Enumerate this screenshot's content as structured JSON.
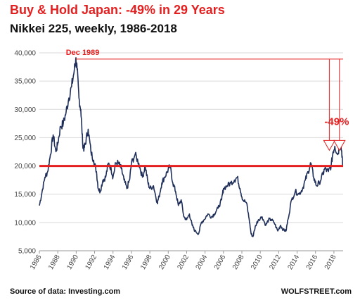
{
  "header": {
    "title": "Buy & Hold Japan: -49% in 29 Years",
    "subtitle": "Nikkei 225, weekly, 1986-2018"
  },
  "footer": {
    "source": "Source of data: Investing.com",
    "brand": "WOLFSTREET.com"
  },
  "colors": {
    "series": "#1f2f5a",
    "accent": "#e41f1f",
    "grid": "#d9d9d9"
  },
  "chart_data": {
    "type": "line",
    "xlim": [
      1986,
      2019
    ],
    "ylim": [
      5000,
      40000
    ],
    "yticks": [
      5000,
      10000,
      15000,
      20000,
      25000,
      30000,
      35000,
      40000
    ],
    "ytick_labels": [
      "5,000",
      "10,000",
      "15,000",
      "20,000",
      "25,000",
      "30,000",
      "35,000",
      "40,000"
    ],
    "xticks": [
      1986,
      1988,
      1990,
      1992,
      1994,
      1996,
      1998,
      2000,
      2002,
      2004,
      2006,
      2008,
      2010,
      2012,
      2014,
      2016,
      2018
    ],
    "xtick_labels": [
      "1986",
      "1988",
      "1990",
      "1992",
      "1994",
      "1996",
      "1998",
      "2000",
      "2002",
      "2004",
      "2006",
      "2008",
      "2010",
      "2012",
      "2014",
      "2016",
      "2018"
    ],
    "grid": "horizontal",
    "series": [
      {
        "x": [
          1986.0,
          1986.3,
          1986.6,
          1986.9,
          1987.2,
          1987.5,
          1987.8,
          1988.0,
          1988.3,
          1988.6,
          1988.9,
          1989.2,
          1989.5,
          1989.8,
          1989.95,
          1990.1,
          1990.3,
          1990.5,
          1990.7,
          1990.85,
          1991.0,
          1991.3,
          1991.6,
          1991.9,
          1992.2,
          1992.4,
          1992.6,
          1992.9,
          1993.2,
          1993.5,
          1993.8,
          1994.0,
          1994.3,
          1994.6,
          1994.9,
          1995.2,
          1995.5,
          1995.8,
          1996.0,
          1996.4,
          1996.8,
          1997.2,
          1997.5,
          1997.8,
          1998.0,
          1998.4,
          1998.8,
          1999.0,
          1999.3,
          1999.6,
          1999.9,
          2000.2,
          2000.5,
          2000.8,
          2001.1,
          2001.4,
          2001.7,
          2002.0,
          2002.3,
          2002.6,
          2002.9,
          2003.3,
          2003.6,
          2003.9,
          2004.3,
          2004.7,
          2005.0,
          2005.4,
          2005.8,
          2006.0,
          2006.4,
          2006.8,
          2007.2,
          2007.5,
          2007.8,
          2008.1,
          2008.5,
          2008.8,
          2009.0,
          2009.2,
          2009.5,
          2009.8,
          2010.2,
          2010.6,
          2010.9,
          2011.2,
          2011.5,
          2011.9,
          2012.2,
          2012.5,
          2012.8,
          2013.0,
          2013.4,
          2013.8,
          2014.2,
          2014.6,
          2014.9,
          2015.2,
          2015.5,
          2015.8,
          2016.1,
          2016.4,
          2016.8,
          2017.0,
          2017.4,
          2017.7,
          2017.9,
          2018.1,
          2018.4,
          2018.7,
          2018.85,
          2018.95
        ],
        "y": [
          13000,
          15500,
          18000,
          19000,
          22000,
          25500,
          22500,
          24000,
          27000,
          27500,
          29500,
          32000,
          34000,
          37000,
          38900,
          37000,
          32000,
          30000,
          24000,
          23000,
          24000,
          26500,
          22500,
          21000,
          19000,
          16000,
          15500,
          17500,
          18000,
          20500,
          19500,
          18000,
          20500,
          20500,
          19500,
          17500,
          16000,
          17500,
          20500,
          22000,
          20500,
          18000,
          20000,
          17000,
          16000,
          16500,
          13500,
          14500,
          17000,
          18000,
          19000,
          20000,
          17000,
          15500,
          13000,
          14000,
          11000,
          10500,
          11500,
          9500,
          8500,
          8000,
          10000,
          10500,
          11500,
          11000,
          11500,
          12500,
          14000,
          16000,
          16500,
          17000,
          17500,
          18000,
          16000,
          14000,
          13500,
          10500,
          8000,
          7500,
          9500,
          10500,
          11000,
          9500,
          10500,
          10500,
          10000,
          8500,
          9500,
          8700,
          8500,
          10500,
          14000,
          15500,
          15000,
          16000,
          17500,
          19000,
          20500,
          18000,
          16500,
          17000,
          18500,
          19500,
          19000,
          20000,
          22500,
          23500,
          22000,
          24000,
          22500,
          20000
        ]
      }
    ],
    "annotations": [
      {
        "text": "Dec 1989",
        "x": 1989.95,
        "y": 38900
      },
      {
        "text": "-49%",
        "x": 2018.0,
        "y": 25000
      }
    ],
    "reference_lines": [
      {
        "y": 20000
      },
      {
        "y": 38900
      }
    ]
  }
}
